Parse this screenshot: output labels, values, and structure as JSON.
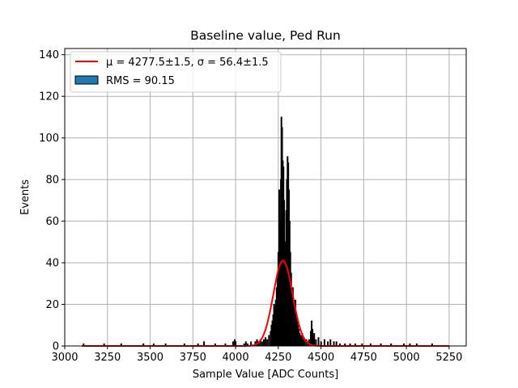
{
  "chart_data": {
    "type": "bar",
    "title": "Baseline value, Ped Run",
    "xlabel": "Sample Value [ADC Counts]",
    "ylabel": "Events",
    "xlim": [
      3000,
      5350
    ],
    "ylim": [
      0,
      143
    ],
    "xticks": [
      3000,
      3250,
      3500,
      3750,
      4000,
      4250,
      4500,
      4750,
      5000,
      5250
    ],
    "yticks": [
      0,
      20,
      40,
      60,
      80,
      100,
      120,
      140
    ],
    "grid": true,
    "legend_position": "top-left",
    "histogram": {
      "name": "RMS = 90.15",
      "color": "#1f77b4",
      "edge_color": "#000000",
      "bins": [
        {
          "x": 3110,
          "v": 1
        },
        {
          "x": 3230,
          "v": 1
        },
        {
          "x": 3330,
          "v": 1
        },
        {
          "x": 3460,
          "v": 1
        },
        {
          "x": 3520,
          "v": 1
        },
        {
          "x": 3590,
          "v": 1
        },
        {
          "x": 3700,
          "v": 1
        },
        {
          "x": 3780,
          "v": 1
        },
        {
          "x": 3815,
          "v": 2
        },
        {
          "x": 3880,
          "v": 1
        },
        {
          "x": 3940,
          "v": 1
        },
        {
          "x": 3985,
          "v": 2
        },
        {
          "x": 3995,
          "v": 3
        },
        {
          "x": 4000,
          "v": 2
        },
        {
          "x": 4050,
          "v": 1
        },
        {
          "x": 4060,
          "v": 2
        },
        {
          "x": 4070,
          "v": 1
        },
        {
          "x": 4090,
          "v": 2
        },
        {
          "x": 4115,
          "v": 2
        },
        {
          "x": 4125,
          "v": 3
        },
        {
          "x": 4135,
          "v": 2
        },
        {
          "x": 4145,
          "v": 3
        },
        {
          "x": 4155,
          "v": 2
        },
        {
          "x": 4165,
          "v": 3
        },
        {
          "x": 4175,
          "v": 4
        },
        {
          "x": 4185,
          "v": 3
        },
        {
          "x": 4195,
          "v": 5
        },
        {
          "x": 4205,
          "v": 7
        },
        {
          "x": 4210,
          "v": 10
        },
        {
          "x": 4215,
          "v": 12
        },
        {
          "x": 4220,
          "v": 15
        },
        {
          "x": 4225,
          "v": 20
        },
        {
          "x": 4230,
          "v": 18
        },
        {
          "x": 4235,
          "v": 22
        },
        {
          "x": 4240,
          "v": 28
        },
        {
          "x": 4245,
          "v": 35
        },
        {
          "x": 4250,
          "v": 45
        },
        {
          "x": 4255,
          "v": 75
        },
        {
          "x": 4260,
          "v": 60
        },
        {
          "x": 4265,
          "v": 80
        },
        {
          "x": 4268,
          "v": 110
        },
        {
          "x": 4272,
          "v": 105
        },
        {
          "x": 4276,
          "v": 89
        },
        {
          "x": 4280,
          "v": 86
        },
        {
          "x": 4284,
          "v": 70
        },
        {
          "x": 4288,
          "v": 50
        },
        {
          "x": 4292,
          "v": 45
        },
        {
          "x": 4296,
          "v": 65
        },
        {
          "x": 4300,
          "v": 80
        },
        {
          "x": 4304,
          "v": 91
        },
        {
          "x": 4308,
          "v": 88
        },
        {
          "x": 4312,
          "v": 75
        },
        {
          "x": 4316,
          "v": 60
        },
        {
          "x": 4320,
          "v": 45
        },
        {
          "x": 4325,
          "v": 35
        },
        {
          "x": 4330,
          "v": 25
        },
        {
          "x": 4335,
          "v": 28
        },
        {
          "x": 4340,
          "v": 20
        },
        {
          "x": 4345,
          "v": 18
        },
        {
          "x": 4350,
          "v": 22
        },
        {
          "x": 4355,
          "v": 15
        },
        {
          "x": 4360,
          "v": 12
        },
        {
          "x": 4365,
          "v": 10
        },
        {
          "x": 4370,
          "v": 8
        },
        {
          "x": 4375,
          "v": 6
        },
        {
          "x": 4380,
          "v": 5
        },
        {
          "x": 4385,
          "v": 4
        },
        {
          "x": 4390,
          "v": 6
        },
        {
          "x": 4395,
          "v": 3
        },
        {
          "x": 4400,
          "v": 3
        },
        {
          "x": 4405,
          "v": 2
        },
        {
          "x": 4415,
          "v": 3
        },
        {
          "x": 4425,
          "v": 2
        },
        {
          "x": 4430,
          "v": 3
        },
        {
          "x": 4440,
          "v": 7
        },
        {
          "x": 4445,
          "v": 12
        },
        {
          "x": 4450,
          "v": 8
        },
        {
          "x": 4455,
          "v": 5
        },
        {
          "x": 4460,
          "v": 6
        },
        {
          "x": 4470,
          "v": 3
        },
        {
          "x": 4485,
          "v": 4
        },
        {
          "x": 4500,
          "v": 2
        },
        {
          "x": 4520,
          "v": 3
        },
        {
          "x": 4540,
          "v": 2
        },
        {
          "x": 4555,
          "v": 3
        },
        {
          "x": 4575,
          "v": 2
        },
        {
          "x": 4590,
          "v": 2
        },
        {
          "x": 4610,
          "v": 1
        },
        {
          "x": 4640,
          "v": 1
        },
        {
          "x": 4670,
          "v": 1
        },
        {
          "x": 4700,
          "v": 1
        },
        {
          "x": 4740,
          "v": 1
        },
        {
          "x": 4790,
          "v": 1
        },
        {
          "x": 4850,
          "v": 1
        },
        {
          "x": 4910,
          "v": 1
        },
        {
          "x": 4985,
          "v": 1
        },
        {
          "x": 5020,
          "v": 1
        },
        {
          "x": 5060,
          "v": 1
        },
        {
          "x": 5150,
          "v": 1
        }
      ],
      "bin_width": 4
    },
    "fit": {
      "name": "$\\mu = 4277.5{\\pm}1.5, \\sigma = 56.4{\\pm}1.5$",
      "color": "#ff0000",
      "mu": 4277.5,
      "sigma": 56.4,
      "amplitude": 41,
      "x_range": [
        3100,
        5250
      ]
    }
  },
  "text": {
    "title": "Baseline value, Ped Run",
    "xlabel": "Sample Value [ADC Counts]",
    "ylabel": "Events",
    "legend_fit": "μ = 4277.5±1.5, σ = 56.4±1.5",
    "legend_hist": "RMS = 90.15"
  }
}
